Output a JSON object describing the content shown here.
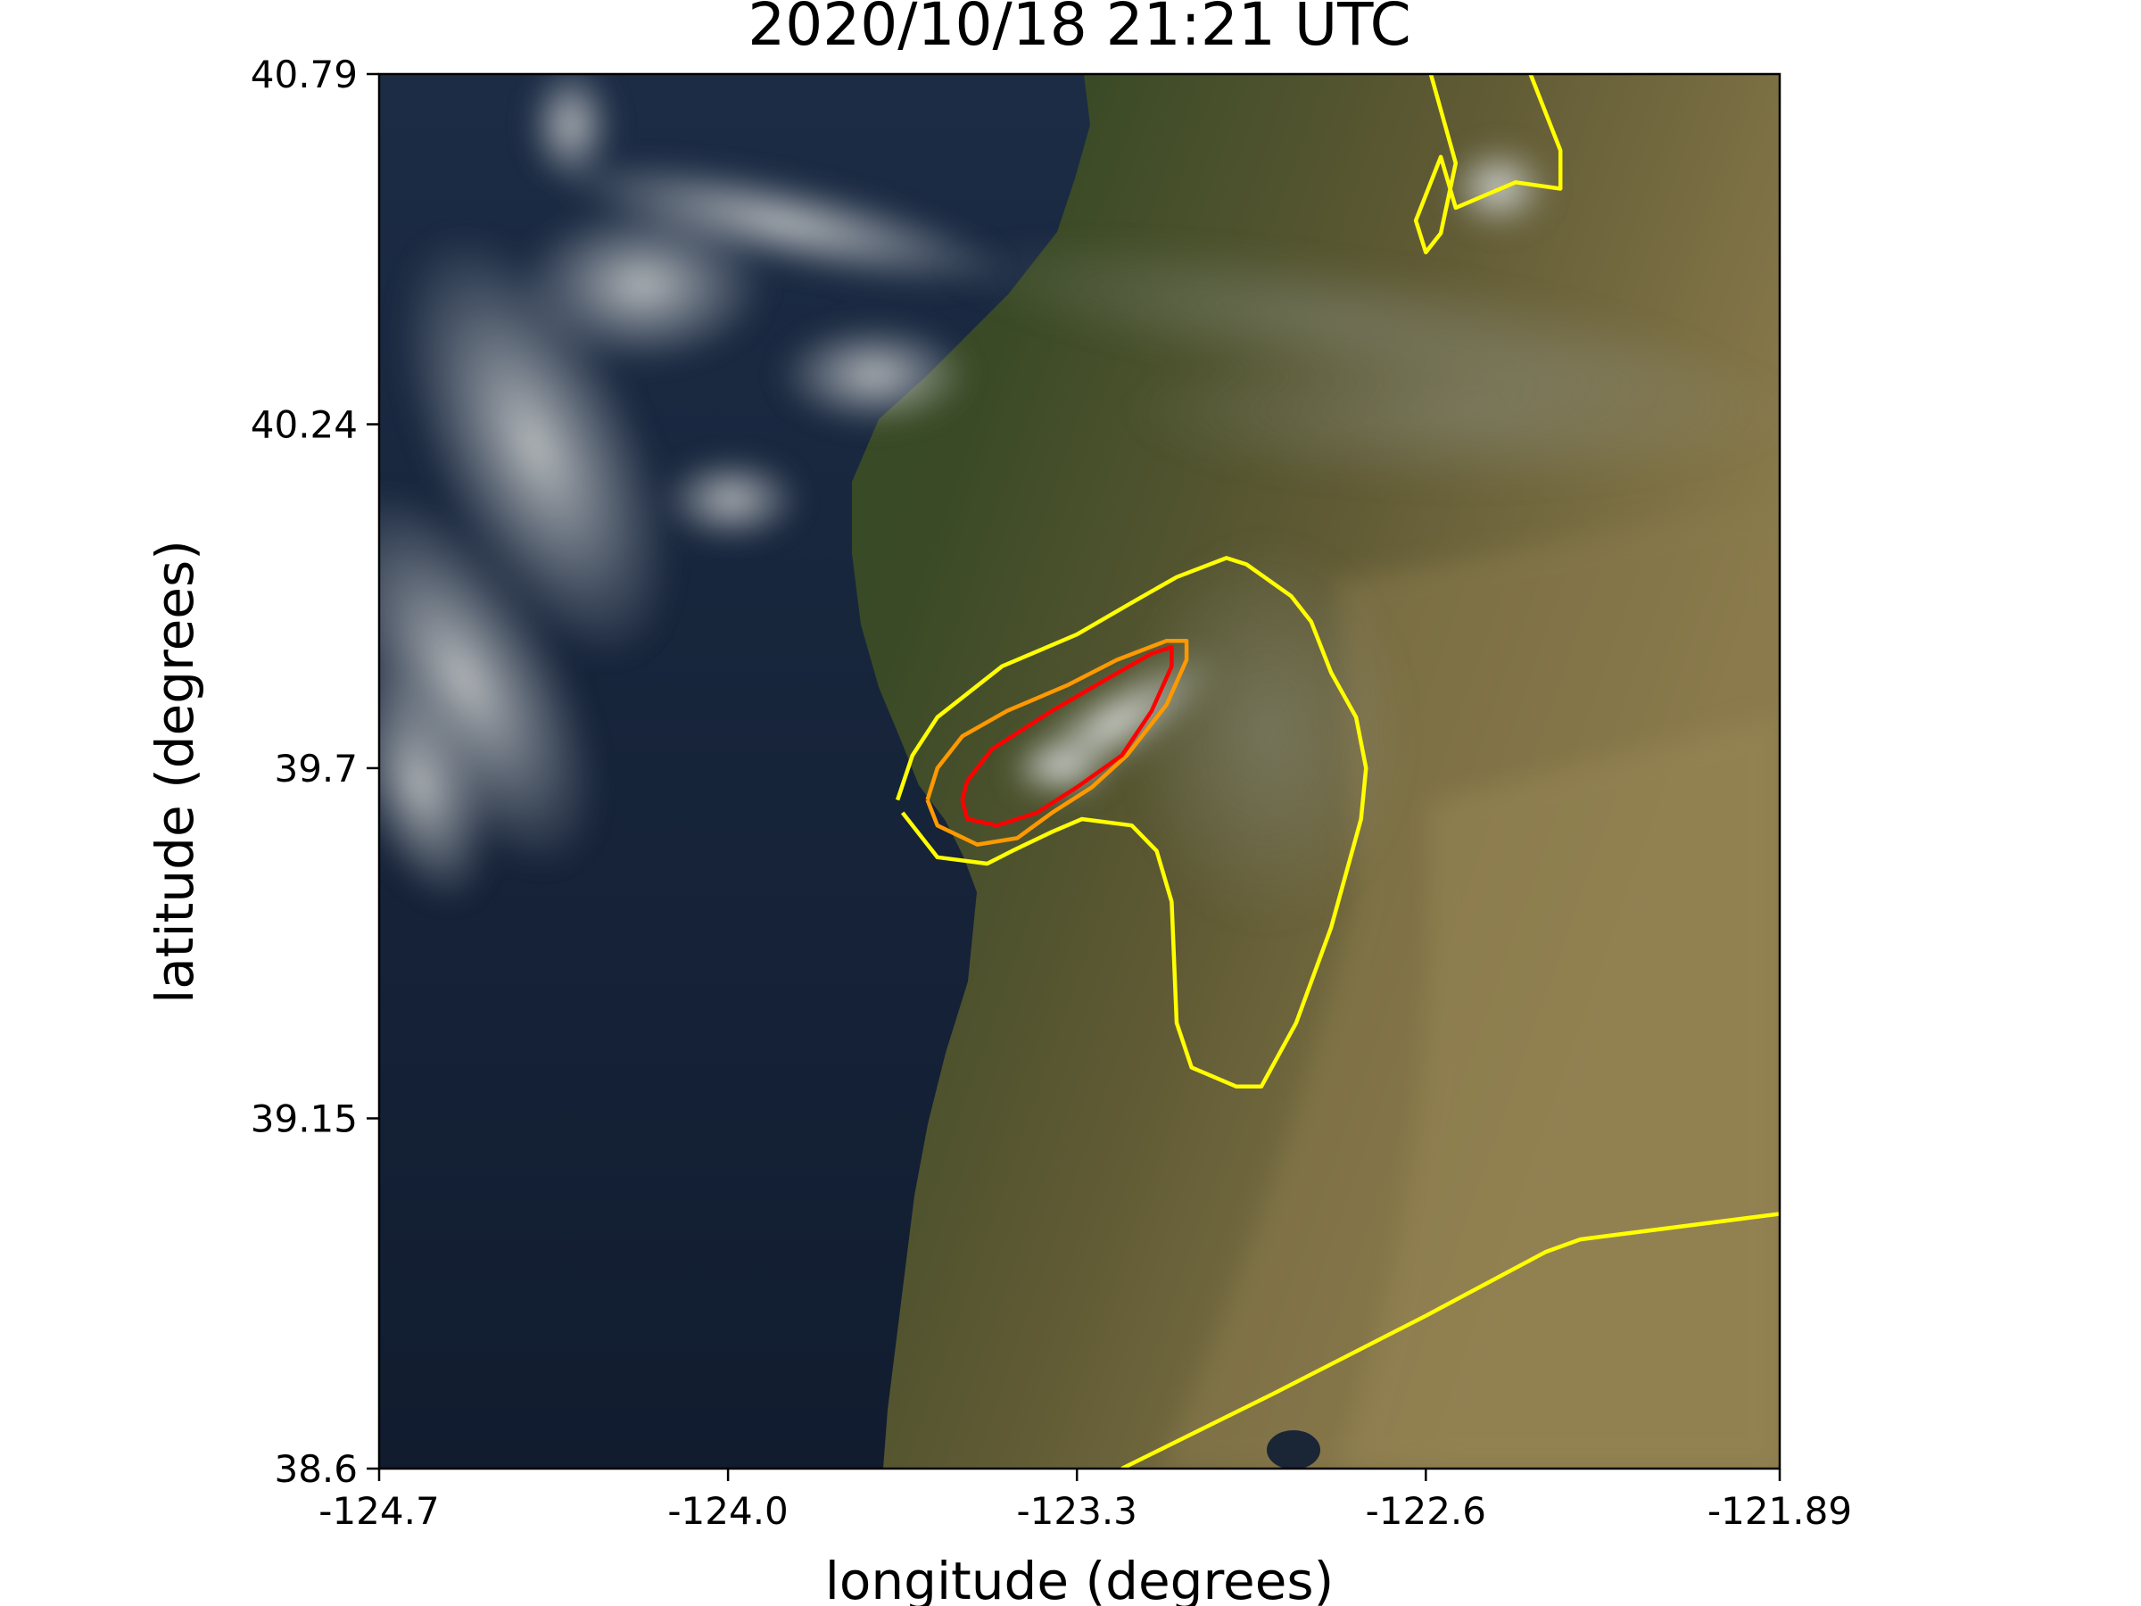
{
  "figure": {
    "title": "2020/10/18 21:21 UTC",
    "xlabel": "longitude (degrees)",
    "ylabel": "latitude (degrees)",
    "xticks": [
      "-124.7",
      "-124.0",
      "-123.3",
      "-122.6",
      "-121.89"
    ],
    "yticks": [
      "40.79",
      "40.24",
      "39.7",
      "39.15",
      "38.6"
    ]
  },
  "colors": {
    "ocean": "#16243a",
    "land_forest": "#2e4423",
    "land_dry": "#8a7a4e",
    "cloud": "#c8c9c6",
    "contour_outer": "#ffff00",
    "contour_mid": "#ff9900",
    "contour_inner": "#ff0000"
  },
  "chart_data": {
    "type": "map",
    "title": "2020/10/18 21:21 UTC",
    "xlabel": "longitude (degrees)",
    "ylabel": "latitude (degrees)",
    "xlim": [
      -124.7,
      -121.89
    ],
    "ylim": [
      38.6,
      40.79
    ],
    "contours": [
      {
        "level": "outer",
        "color": "#ffff00",
        "points": [
          [
            -122.59,
            40.79
          ],
          [
            -122.54,
            40.65
          ],
          [
            -122.57,
            40.54
          ],
          [
            -122.6,
            40.51
          ],
          [
            -122.62,
            40.56
          ],
          [
            -122.57,
            40.66
          ],
          [
            -122.54,
            40.58
          ],
          [
            -122.42,
            40.62
          ],
          [
            -122.33,
            40.61
          ],
          [
            -122.33,
            40.67
          ],
          [
            -122.39,
            40.79
          ]
        ]
      },
      {
        "level": "outer",
        "color": "#ffff00",
        "points": [
          [
            -123.65,
            39.63
          ],
          [
            -123.58,
            39.56
          ],
          [
            -123.48,
            39.55
          ],
          [
            -123.43,
            39.57
          ],
          [
            -123.35,
            39.6
          ],
          [
            -123.29,
            39.62
          ],
          [
            -123.19,
            39.61
          ],
          [
            -123.14,
            39.57
          ],
          [
            -123.11,
            39.49
          ],
          [
            -123.1,
            39.3
          ],
          [
            -123.07,
            39.23
          ],
          [
            -122.98,
            39.2
          ],
          [
            -122.93,
            39.2
          ],
          [
            -122.86,
            39.3
          ],
          [
            -122.79,
            39.45
          ],
          [
            -122.73,
            39.62
          ],
          [
            -122.72,
            39.7
          ],
          [
            -122.74,
            39.78
          ],
          [
            -122.79,
            39.85
          ],
          [
            -122.83,
            39.93
          ],
          [
            -122.87,
            39.97
          ],
          [
            -122.96,
            40.02
          ],
          [
            -123.0,
            40.03
          ],
          [
            -123.1,
            40.0
          ],
          [
            -123.19,
            39.96
          ],
          [
            -123.3,
            39.91
          ],
          [
            -123.45,
            39.86
          ],
          [
            -123.58,
            39.78
          ],
          [
            -123.63,
            39.72
          ],
          [
            -123.66,
            39.65
          ]
        ]
      },
      {
        "level": "mid",
        "color": "#ff9900",
        "points": [
          [
            -123.6,
            39.65
          ],
          [
            -123.58,
            39.61
          ],
          [
            -123.5,
            39.58
          ],
          [
            -123.42,
            39.59
          ],
          [
            -123.35,
            39.63
          ],
          [
            -123.27,
            39.67
          ],
          [
            -123.2,
            39.72
          ],
          [
            -123.12,
            39.8
          ],
          [
            -123.08,
            39.87
          ],
          [
            -123.08,
            39.9
          ],
          [
            -123.12,
            39.9
          ],
          [
            -123.22,
            39.87
          ],
          [
            -123.32,
            39.83
          ],
          [
            -123.44,
            39.79
          ],
          [
            -123.53,
            39.75
          ],
          [
            -123.58,
            39.7
          ],
          [
            -123.6,
            39.65
          ]
        ]
      },
      {
        "level": "inner",
        "color": "#ff0000",
        "points": [
          [
            -123.53,
            39.65
          ],
          [
            -123.52,
            39.62
          ],
          [
            -123.46,
            39.61
          ],
          [
            -123.38,
            39.63
          ],
          [
            -123.3,
            39.67
          ],
          [
            -123.21,
            39.72
          ],
          [
            -123.15,
            39.79
          ],
          [
            -123.11,
            39.86
          ],
          [
            -123.11,
            39.89
          ],
          [
            -123.15,
            39.88
          ],
          [
            -123.24,
            39.84
          ],
          [
            -123.35,
            39.79
          ],
          [
            -123.47,
            39.73
          ],
          [
            -123.52,
            39.68
          ],
          [
            -123.53,
            39.65
          ]
        ]
      },
      {
        "level": "outer",
        "color": "#ffff00",
        "points": [
          [
            -123.21,
            38.6
          ],
          [
            -122.9,
            38.72
          ],
          [
            -122.6,
            38.84
          ],
          [
            -122.36,
            38.94
          ],
          [
            -122.29,
            38.96
          ],
          [
            -121.89,
            39.0
          ]
        ]
      }
    ]
  }
}
